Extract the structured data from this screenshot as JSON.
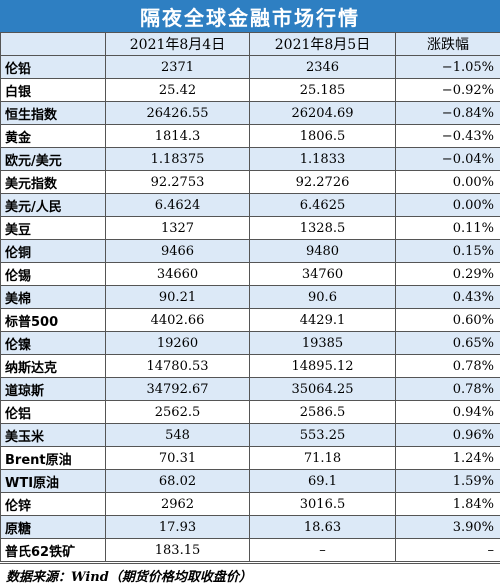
{
  "title": "隔夜全球金融市场行情",
  "headers": [
    "",
    "2021年8月4日",
    "2021年8月5日",
    "涨跌幅"
  ],
  "rows": [
    {
      "name": "伦铅",
      "d1": "2371",
      "d2": "2346",
      "chg": "−1.05%"
    },
    {
      "name": "白银",
      "d1": "25.42",
      "d2": "25.185",
      "chg": "−0.92%"
    },
    {
      "name": "恒生指数",
      "d1": "26426.55",
      "d2": "26204.69",
      "chg": "−0.84%"
    },
    {
      "name": "黄金",
      "d1": "1814.3",
      "d2": "1806.5",
      "chg": "−0.43%"
    },
    {
      "name": "欧元/美元",
      "d1": "1.18375",
      "d2": "1.1833",
      "chg": "−0.04%"
    },
    {
      "name": "美元指数",
      "d1": "92.2753",
      "d2": "92.2726",
      "chg": "0.00%"
    },
    {
      "name": "美元/人民",
      "d1": "6.4624",
      "d2": "6.4625",
      "chg": "0.00%"
    },
    {
      "name": "美豆",
      "d1": "1327",
      "d2": "1328.5",
      "chg": "0.11%"
    },
    {
      "name": "伦铜",
      "d1": "9466",
      "d2": "9480",
      "chg": "0.15%"
    },
    {
      "name": "伦锡",
      "d1": "34660",
      "d2": "34760",
      "chg": "0.29%"
    },
    {
      "name": "美棉",
      "d1": "90.21",
      "d2": "90.6",
      "chg": "0.43%"
    },
    {
      "name": "标普500",
      "d1": "4402.66",
      "d2": "4429.1",
      "chg": "0.60%"
    },
    {
      "name": "伦镍",
      "d1": "19260",
      "d2": "19385",
      "chg": "0.65%"
    },
    {
      "name": "纳斯达克",
      "d1": "14780.53",
      "d2": "14895.12",
      "chg": "0.78%"
    },
    {
      "name": "道琼斯",
      "d1": "34792.67",
      "d2": "35064.25",
      "chg": "0.78%"
    },
    {
      "name": "伦铝",
      "d1": "2562.5",
      "d2": "2586.5",
      "chg": "0.94%"
    },
    {
      "name": "美玉米",
      "d1": "548",
      "d2": "553.25",
      "chg": "0.96%"
    },
    {
      "name": "Brent原油",
      "d1": "70.31",
      "d2": "71.18",
      "chg": "1.24%"
    },
    {
      "name": "WTI原油",
      "d1": "68.02",
      "d2": "69.1",
      "chg": "1.59%"
    },
    {
      "name": "伦锌",
      "d1": "2962",
      "d2": "3016.5",
      "chg": "1.84%"
    },
    {
      "name": "原糖",
      "d1": "17.93",
      "d2": "18.63",
      "chg": "3.90%"
    },
    {
      "name": "普氏62铁矿",
      "d1": "183.15",
      "d2": "–",
      "chg": "–"
    }
  ],
  "source": "数据来源：Wind（期货价格均取收盘价）"
}
